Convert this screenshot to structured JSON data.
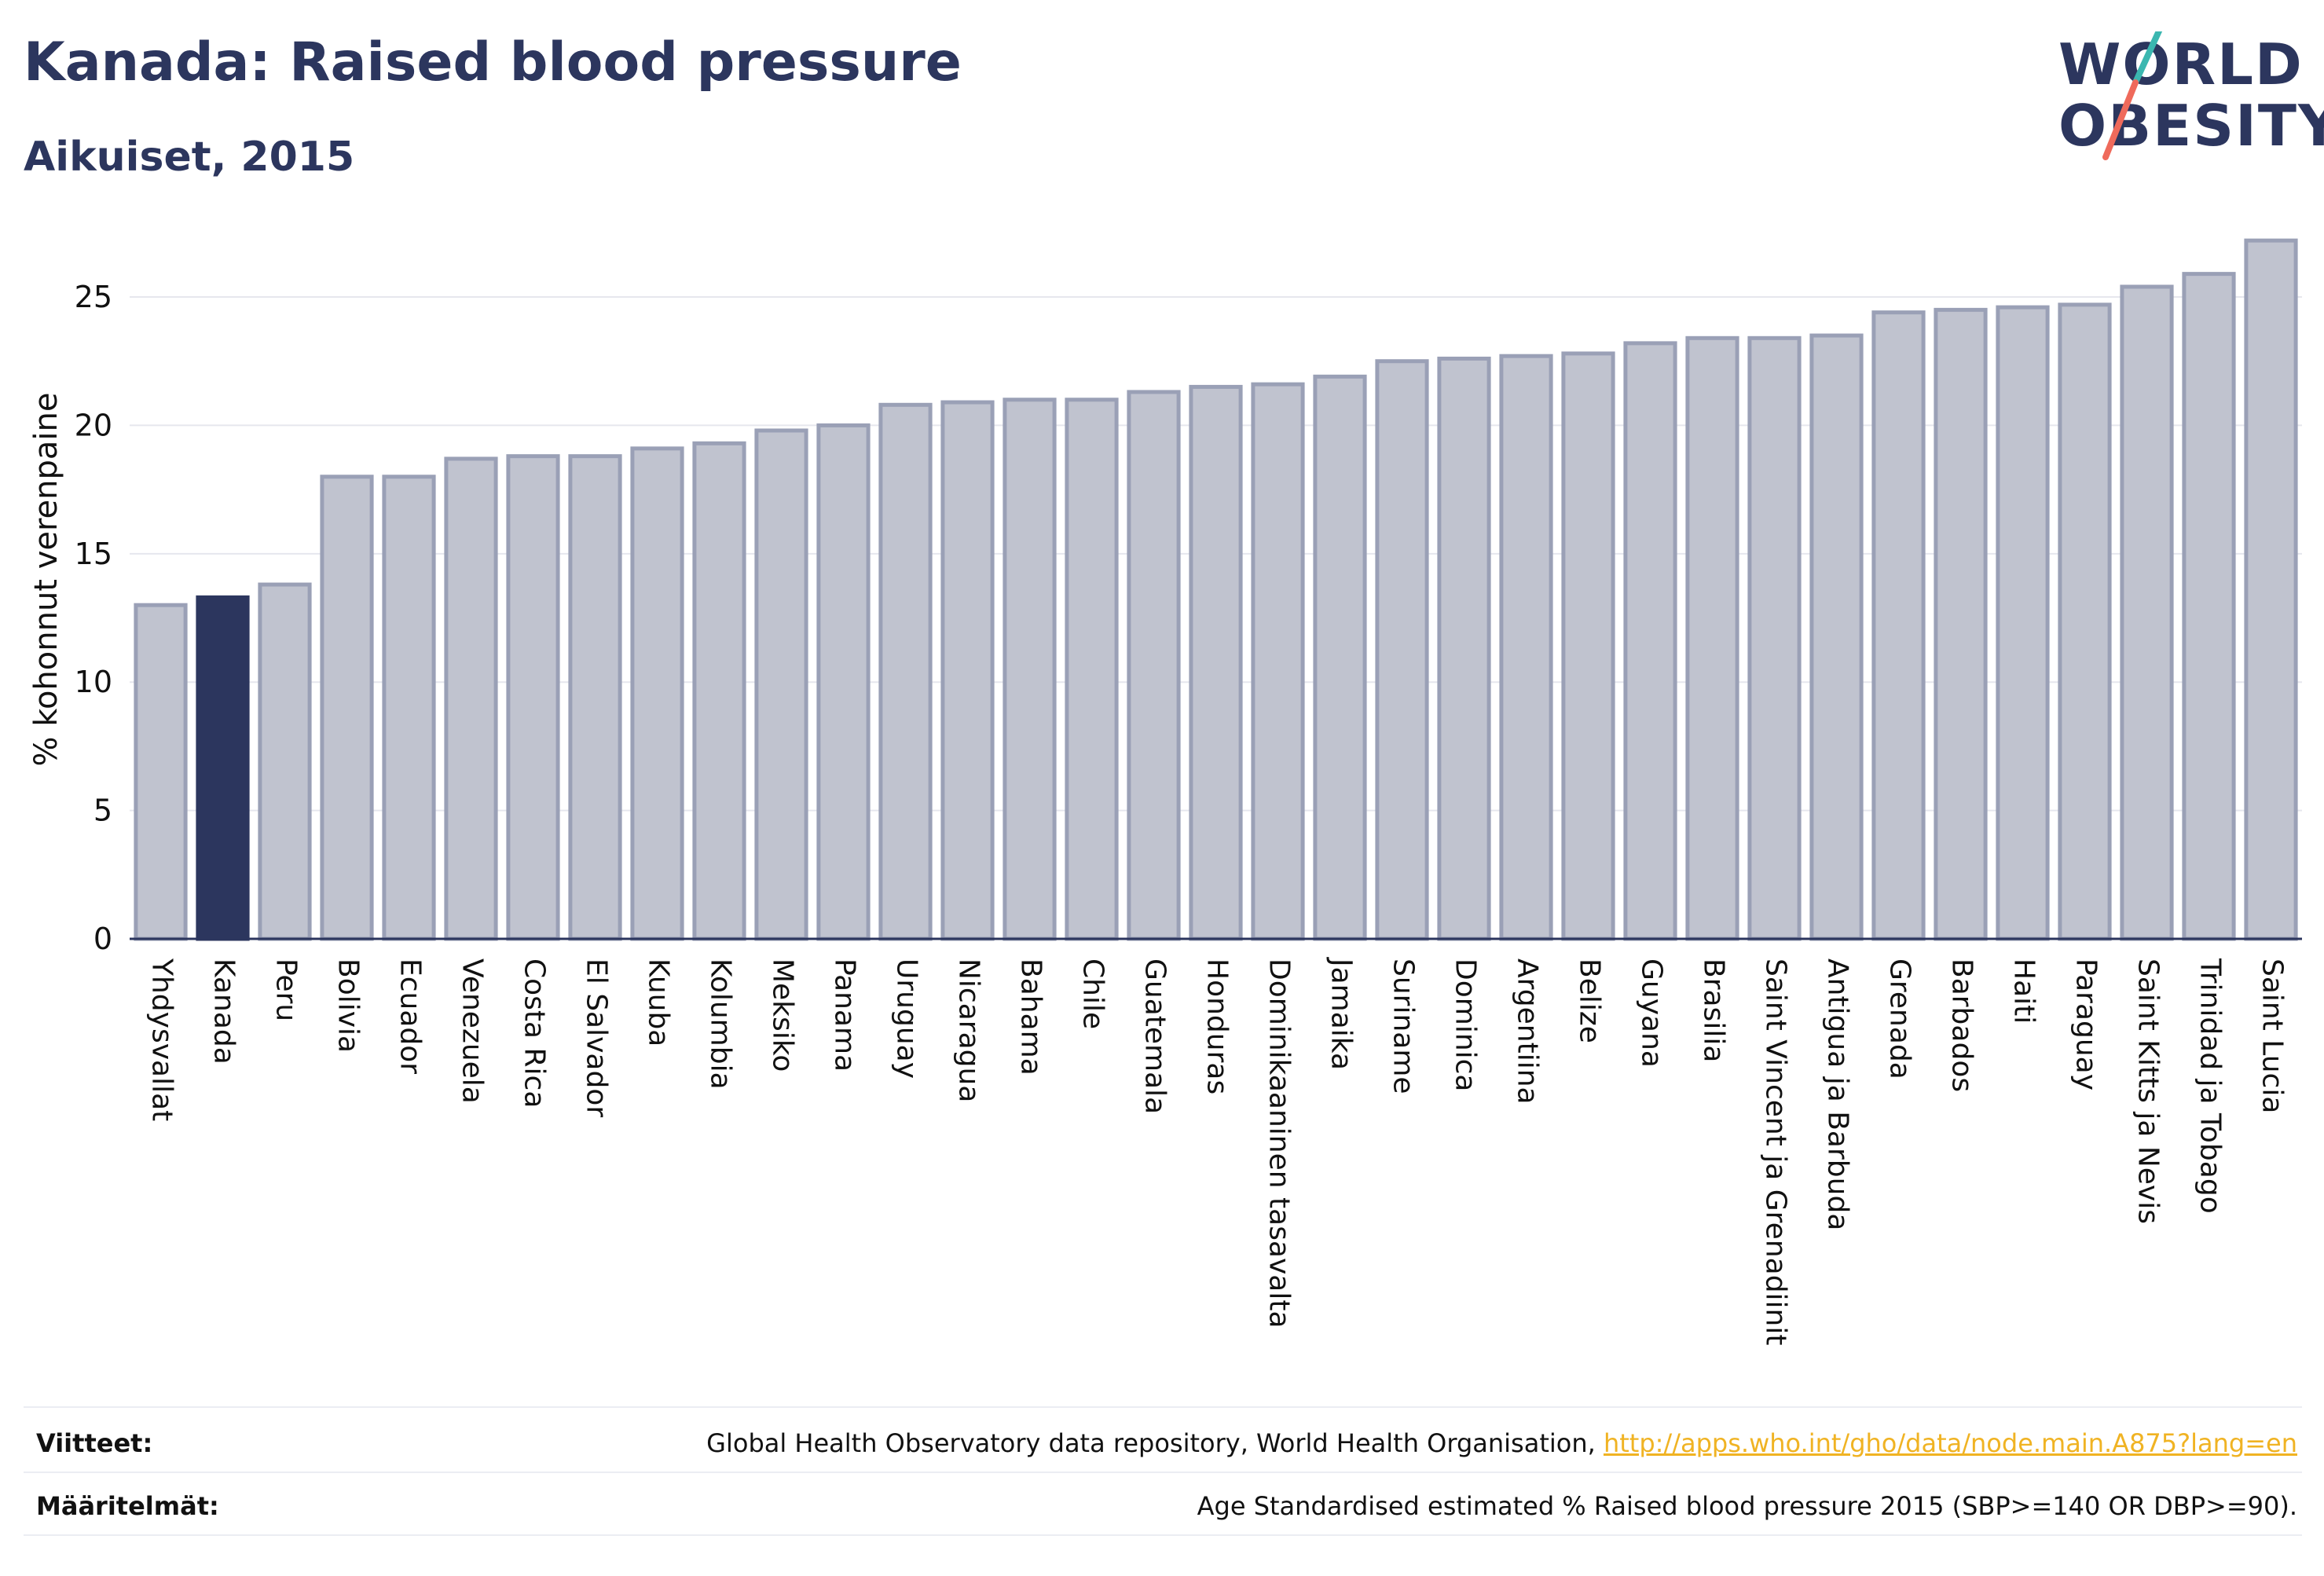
{
  "header": {
    "title": "Kanada: Raised blood pressure",
    "subtitle": "Aikuiset, 2015"
  },
  "logo": {
    "line1": "WORLD",
    "line2": "OBESITY",
    "accent_teal": "#3bb7b0",
    "accent_coral": "#ef6a5b"
  },
  "colors": {
    "bar": "#c0c3cf",
    "bar_stroke": "#9aa0b6",
    "highlight": "#2c365e",
    "grid": "#e6e7ee"
  },
  "chart_data": {
    "type": "bar",
    "ylabel": "% kohonnut verenpaine",
    "ylim": [
      0,
      28
    ],
    "yticks": [
      0,
      5,
      10,
      15,
      20,
      25
    ],
    "grid": true,
    "highlight_category": "Kanada",
    "categories": [
      "Yhdysvallat",
      "Kanada",
      "Peru",
      "Bolivia",
      "Ecuador",
      "Venezuela",
      "Costa Rica",
      "El Salvador",
      "Kuuba",
      "Kolumbia",
      "Meksiko",
      "Panama",
      "Uruguay",
      "Nicaragua",
      "Bahama",
      "Chile",
      "Guatemala",
      "Honduras",
      "Dominikaaninen tasavalta",
      "Jamaika",
      "Suriname",
      "Dominica",
      "Argentiina",
      "Belize",
      "Guyana",
      "Brasilia",
      "Saint Vincent ja Grenadiinit",
      "Antigua ja Barbuda",
      "Grenada",
      "Barbados",
      "Haiti",
      "Paraguay",
      "Saint Kitts ja Nevis",
      "Trinidad ja Tobago",
      "Saint Lucia"
    ],
    "values": [
      13.0,
      13.3,
      13.8,
      18.0,
      18.0,
      18.7,
      18.8,
      18.8,
      19.1,
      19.3,
      19.8,
      20.0,
      20.8,
      20.9,
      21.0,
      21.0,
      21.3,
      21.5,
      21.6,
      21.9,
      22.5,
      22.6,
      22.7,
      22.8,
      23.2,
      23.4,
      23.4,
      23.5,
      24.4,
      24.5,
      24.6,
      24.7,
      25.4,
      25.9,
      27.2
    ]
  },
  "footer": {
    "sources_label": "Viitteet:",
    "sources_text": "Global Health Observatory data repository, World Health Organisation, ",
    "sources_link": "http://apps.who.int/gho/data/node.main.A875?lang=en",
    "definitions_label": "Määritelmät:",
    "definitions_text": "Age Standardised estimated % Raised blood pressure 2015 (SBP>=140 OR DBP>=90)."
  }
}
